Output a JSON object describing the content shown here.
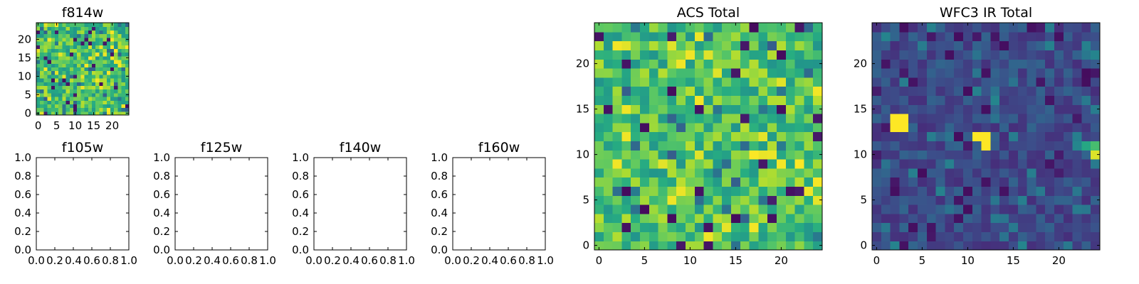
{
  "chart_data": [
    {
      "id": "f814w",
      "type": "heatmap",
      "title": "f814w",
      "rows": 25,
      "cols": 25,
      "xlim": [
        -0.5,
        24.5
      ],
      "ylim": [
        -0.5,
        24.5
      ],
      "xticks": [
        0,
        5,
        10,
        15,
        20
      ],
      "yticks": [
        0,
        5,
        10,
        15,
        20
      ],
      "colormap": "viridis",
      "value_range": [
        0,
        1
      ],
      "seed": 814,
      "style": "acs",
      "grid": false
    },
    {
      "id": "f105w",
      "type": "empty",
      "title": "f105w",
      "xlim": [
        0,
        1
      ],
      "ylim": [
        0,
        1
      ],
      "xticks": [
        "0.0",
        "0.2",
        "0.4",
        "0.6",
        "0.8",
        "1.0"
      ],
      "yticks": [
        "0.0",
        "0.2",
        "0.4",
        "0.6",
        "0.8",
        "1.0"
      ],
      "grid": false
    },
    {
      "id": "f125w",
      "type": "empty",
      "title": "f125w",
      "xlim": [
        0,
        1
      ],
      "ylim": [
        0,
        1
      ],
      "xticks": [
        "0.0",
        "0.2",
        "0.4",
        "0.6",
        "0.8",
        "1.0"
      ],
      "yticks": [
        "0.0",
        "0.2",
        "0.4",
        "0.6",
        "0.8",
        "1.0"
      ],
      "grid": false
    },
    {
      "id": "f140w",
      "type": "empty",
      "title": "f140w",
      "xlim": [
        0,
        1
      ],
      "ylim": [
        0,
        1
      ],
      "xticks": [
        "0.0",
        "0.2",
        "0.4",
        "0.6",
        "0.8",
        "1.0"
      ],
      "yticks": [
        "0.0",
        "0.2",
        "0.4",
        "0.6",
        "0.8",
        "1.0"
      ],
      "grid": false
    },
    {
      "id": "f160w",
      "type": "empty",
      "title": "f160w",
      "xlim": [
        0,
        1
      ],
      "ylim": [
        0,
        1
      ],
      "xticks": [
        "0.0",
        "0.2",
        "0.4",
        "0.6",
        "0.8",
        "1.0"
      ],
      "yticks": [
        "0.0",
        "0.2",
        "0.4",
        "0.6",
        "0.8",
        "1.0"
      ],
      "grid": false
    },
    {
      "id": "acs-total",
      "type": "heatmap",
      "title": "ACS Total",
      "rows": 25,
      "cols": 25,
      "xlim": [
        -0.5,
        24.5
      ],
      "ylim": [
        -0.5,
        24.5
      ],
      "xticks": [
        0,
        5,
        10,
        15,
        20
      ],
      "yticks": [
        0,
        5,
        10,
        15,
        20
      ],
      "colormap": "viridis",
      "value_range": [
        0,
        1
      ],
      "seed": 2024,
      "style": "acs",
      "grid": false
    },
    {
      "id": "wfc3-ir-total",
      "type": "heatmap",
      "title": "WFC3 IR Total",
      "rows": 25,
      "cols": 25,
      "xlim": [
        -0.5,
        24.5
      ],
      "ylim": [
        -0.5,
        24.5
      ],
      "xticks": [
        0,
        5,
        10,
        15,
        20
      ],
      "yticks": [
        0,
        5,
        10,
        15,
        20
      ],
      "colormap": "viridis",
      "value_range": [
        0,
        1
      ],
      "seed": 3160,
      "style": "ir",
      "hot_pixels": [
        [
          2,
          13,
          1.0
        ],
        [
          3,
          13,
          1.0
        ],
        [
          2,
          14,
          1.0
        ],
        [
          3,
          14,
          1.0
        ],
        [
          11,
          12,
          1.0
        ],
        [
          12,
          12,
          1.0
        ],
        [
          12,
          11,
          1.0
        ],
        [
          24,
          10,
          0.95
        ],
        [
          24,
          11,
          0.7
        ],
        [
          23,
          11,
          0.6
        ]
      ],
      "grid": false
    }
  ]
}
